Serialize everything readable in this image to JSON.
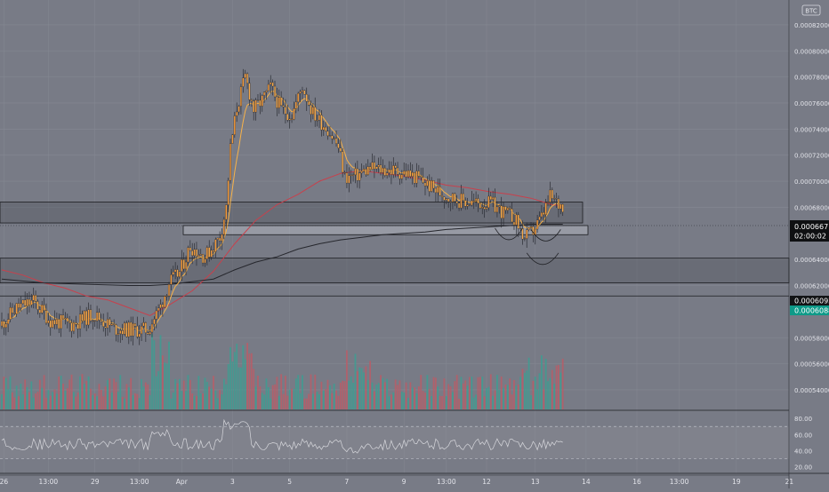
{
  "chart_data": {
    "type": "candlestick",
    "instrument_badge": "BTC",
    "price_axis": {
      "labels": [
        "0.00082000",
        "0.00080000",
        "0.00078000",
        "0.00076000",
        "0.00074000",
        "0.00072000",
        "0.00070000",
        "0.00068000",
        "0.00064000",
        "0.00062000",
        "0.00058000",
        "0.00056000",
        "0.00054000"
      ],
      "range": [
        0.000525,
        0.000839
      ],
      "current_price": "0.00066716",
      "countdown": "02:00:02",
      "tag_ma_1": "0.00060938",
      "tag_ma_2": "0.00060889"
    },
    "rsi_axis": {
      "labels": [
        "80.00",
        "60.00",
        "40.00",
        "20.00"
      ],
      "range": [
        12,
        90
      ],
      "bands": [
        70,
        30
      ]
    },
    "time_axis": {
      "labels": [
        "26",
        "13:00",
        "29",
        "13:00",
        "Apr",
        "3",
        "5",
        "7",
        "9",
        "13:00",
        "12",
        "13",
        "14",
        "16",
        "13:00",
        "19",
        "21"
      ],
      "label_index": [
        1,
        22,
        44,
        65,
        85,
        109,
        136,
        163,
        190,
        210,
        229,
        252,
        276,
        300,
        320,
        347,
        372
      ]
    },
    "zones": [
      {
        "top": 0.000684,
        "bottom": 0.000668
      },
      {
        "top": 0.000666,
        "bottom": 0.000659
      },
      {
        "top": 0.000641,
        "bottom": 0.000622
      }
    ],
    "horizontal_lines": [
      0.000612
    ],
    "candle_anchors": [
      [
        0,
        0.000589
      ],
      [
        8,
        0.000603
      ],
      [
        16,
        0.000608
      ],
      [
        24,
        0.000593
      ],
      [
        34,
        0.00059
      ],
      [
        44,
        0.000598
      ],
      [
        54,
        0.000587
      ],
      [
        62,
        0.000586
      ],
      [
        70,
        0.000586
      ],
      [
        76,
        0.000604
      ],
      [
        80,
        0.000622
      ],
      [
        85,
        0.00063
      ],
      [
        90,
        0.00065
      ],
      [
        97,
        0.000642
      ],
      [
        104,
        0.000657
      ],
      [
        107,
        0.00068
      ],
      [
        109,
        0.000725
      ],
      [
        112,
        0.000756
      ],
      [
        116,
        0.00078
      ],
      [
        120,
        0.000755
      ],
      [
        124,
        0.000762
      ],
      [
        128,
        0.000772
      ],
      [
        133,
        0.000755
      ],
      [
        138,
        0.000751
      ],
      [
        143,
        0.000773
      ],
      [
        148,
        0.000752
      ],
      [
        155,
        0.00074
      ],
      [
        160,
        0.000726
      ],
      [
        163,
        0.000703
      ],
      [
        168,
        0.000704
      ],
      [
        175,
        0.00071
      ],
      [
        180,
        0.000709
      ],
      [
        186,
        0.000708
      ],
      [
        192,
        0.000706
      ],
      [
        198,
        0.000702
      ],
      [
        206,
        0.000693
      ],
      [
        212,
        0.000688
      ],
      [
        218,
        0.000685
      ],
      [
        226,
        0.000683
      ],
      [
        232,
        0.000683
      ],
      [
        238,
        0.000676
      ],
      [
        243,
        0.000672
      ],
      [
        248,
        0.000656
      ],
      [
        252,
        0.000662
      ],
      [
        256,
        0.000672
      ],
      [
        260,
        0.000688
      ],
      [
        264,
        0.000682
      ]
    ],
    "ma_red": [
      [
        0,
        0.000632
      ],
      [
        10,
        0.000628
      ],
      [
        20,
        0.000622
      ],
      [
        30,
        0.000618
      ],
      [
        40,
        0.000612
      ],
      [
        50,
        0.000609
      ],
      [
        60,
        0.000603
      ],
      [
        70,
        0.000597
      ],
      [
        80,
        0.000606
      ],
      [
        90,
        0.000616
      ],
      [
        100,
        0.000631
      ],
      [
        110,
        0.000652
      ],
      [
        120,
        0.00067
      ],
      [
        130,
        0.000682
      ],
      [
        140,
        0.00069
      ],
      [
        150,
        0.0007
      ],
      [
        160,
        0.000706
      ],
      [
        170,
        0.000708
      ],
      [
        180,
        0.000706
      ],
      [
        190,
        0.000704
      ],
      [
        200,
        0.000701
      ],
      [
        210,
        0.000697
      ],
      [
        220,
        0.000695
      ],
      [
        230,
        0.000692
      ],
      [
        240,
        0.00069
      ],
      [
        250,
        0.000687
      ],
      [
        260,
        0.000682
      ],
      [
        265,
        0.000681
      ]
    ],
    "ma_dark": [
      [
        0,
        0.000625
      ],
      [
        20,
        0.000622
      ],
      [
        40,
        0.000621
      ],
      [
        60,
        0.00062
      ],
      [
        70,
        0.00062
      ],
      [
        80,
        0.000621
      ],
      [
        90,
        0.000623
      ],
      [
        100,
        0.000625
      ],
      [
        110,
        0.000632
      ],
      [
        120,
        0.000638
      ],
      [
        130,
        0.000642
      ],
      [
        140,
        0.000648
      ],
      [
        150,
        0.000652
      ],
      [
        160,
        0.000655
      ],
      [
        170,
        0.000657
      ],
      [
        180,
        0.000659
      ],
      [
        190,
        0.00066
      ],
      [
        200,
        0.000661
      ],
      [
        210,
        0.000663
      ],
      [
        220,
        0.000664
      ],
      [
        230,
        0.000665
      ],
      [
        240,
        0.000666
      ],
      [
        250,
        0.000667
      ],
      [
        265,
        0.000667
      ]
    ],
    "arcs": [
      {
        "t0": 233,
        "t1": 246,
        "price": 0.000664
      },
      {
        "t0": 250,
        "t1": 264,
        "price": 0.000663
      },
      {
        "t0": 248,
        "t1": 263,
        "price": 0.000645
      }
    ]
  },
  "colors": {
    "background": "#787b86",
    "grid": "#858892",
    "candle_up_body": "#f39a3b",
    "candle_down_body": "#f5a94a",
    "wick": "#2b2d34",
    "ma_fast": "#f7b24a",
    "ma_red": "#c8404c",
    "ma_dark": "#26272d",
    "vol_up": "#3d9d92",
    "vol_down": "#b85d67",
    "current_tag": "#0f1012",
    "ma_tag_1": "#131416",
    "ma_tag_2": "#0e9a88"
  }
}
